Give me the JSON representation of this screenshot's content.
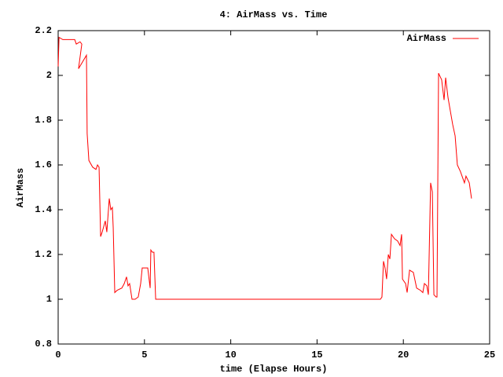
{
  "chart_data": {
    "type": "line",
    "title": "4: AirMass vs. Time",
    "xlabel": "time (Elapse Hours)",
    "ylabel": "AirMass",
    "x": [
      0,
      0.05,
      0.27,
      0.73,
      0.96,
      1.05,
      1.27,
      1.37,
      1.18,
      1.64,
      1.68,
      1.78,
      2.0,
      2.19,
      2.28,
      2.37,
      2.46,
      2.55,
      2.73,
      2.82,
      2.96,
      3.05,
      3.14,
      3.19,
      3.28,
      3.42,
      3.69,
      3.83,
      3.96,
      4.05,
      4.14,
      4.28,
      4.46,
      4.64,
      4.78,
      4.87,
      5.19,
      5.33,
      5.37,
      5.46,
      5.55,
      5.65,
      18.4,
      18.67,
      18.76,
      18.85,
      18.94,
      19.03,
      19.13,
      19.22,
      19.31,
      19.49,
      19.67,
      19.81,
      19.9,
      19.95,
      20.13,
      20.22,
      20.36,
      20.58,
      20.77,
      20.99,
      21.13,
      21.22,
      21.36,
      21.45,
      21.58,
      21.68,
      21.77,
      21.9,
      21.95,
      22.04,
      22.22,
      22.36,
      22.45,
      22.59,
      22.86,
      23.0,
      23.13,
      23.31,
      23.54,
      23.63,
      23.82,
      23.95
    ],
    "series": [
      {
        "name": "AirMass",
        "color": "#ff0000",
        "values": [
          2.04,
          2.17,
          2.16,
          2.16,
          2.16,
          2.14,
          2.15,
          2.14,
          2.03,
          2.09,
          1.74,
          1.62,
          1.59,
          1.58,
          1.6,
          1.59,
          1.28,
          1.3,
          1.35,
          1.3,
          1.45,
          1.4,
          1.41,
          1.32,
          1.03,
          1.04,
          1.05,
          1.07,
          1.1,
          1.06,
          1.07,
          1.0,
          1.0,
          1.01,
          1.07,
          1.14,
          1.14,
          1.05,
          1.22,
          1.21,
          1.21,
          1.0,
          1.0,
          1.0,
          1.01,
          1.17,
          1.14,
          1.09,
          1.2,
          1.18,
          1.29,
          1.27,
          1.26,
          1.24,
          1.29,
          1.09,
          1.07,
          1.03,
          1.13,
          1.12,
          1.05,
          1.04,
          1.03,
          1.07,
          1.06,
          1.02,
          1.52,
          1.48,
          1.02,
          1.01,
          1.01,
          2.01,
          1.98,
          1.89,
          1.99,
          1.9,
          1.78,
          1.73,
          1.6,
          1.57,
          1.52,
          1.55,
          1.52,
          1.45
        ]
      }
    ],
    "xlim": [
      0,
      25
    ],
    "xticks": [
      0,
      5,
      10,
      15,
      20,
      25
    ],
    "ylim": [
      0.8,
      2.2
    ],
    "yticks": [
      0.8,
      1,
      1.2,
      1.4,
      1.6,
      1.8,
      2,
      2.2
    ],
    "legend": "upper right"
  }
}
